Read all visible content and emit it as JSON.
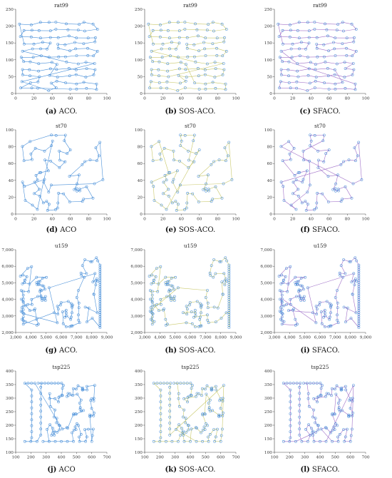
{
  "chart_data": [
    {
      "type": "scatter",
      "title": "rat99",
      "panel_letter": "(a)",
      "caption": "ACO.",
      "xlim": [
        0,
        100
      ],
      "ylim": [
        0,
        250
      ],
      "xticks": [
        0,
        20,
        40,
        60,
        80,
        100
      ],
      "yticks": [
        0,
        50,
        100,
        150,
        200,
        250
      ],
      "grid": "rat",
      "variant": 0
    },
    {
      "type": "scatter",
      "title": "rat99",
      "panel_letter": "(b)",
      "caption": "SOS-ACO.",
      "xlim": [
        0,
        100
      ],
      "ylim": [
        0,
        250
      ],
      "xticks": [
        0,
        20,
        40,
        60,
        80,
        100
      ],
      "yticks": [
        0,
        50,
        100,
        150,
        200,
        250
      ],
      "grid": "rat",
      "variant": 1
    },
    {
      "type": "scatter",
      "title": "rat99",
      "panel_letter": "(c)",
      "caption": "SFACO.",
      "xlim": [
        0,
        100
      ],
      "ylim": [
        0,
        250
      ],
      "xticks": [
        0,
        20,
        40,
        60,
        80,
        100
      ],
      "yticks": [
        0,
        50,
        100,
        150,
        200,
        250
      ],
      "grid": "rat",
      "variant": 2
    },
    {
      "type": "scatter",
      "title": "st70",
      "panel_letter": "(d)",
      "caption": "ACO",
      "xlim": [
        0,
        100
      ],
      "ylim": [
        0,
        100
      ],
      "xticks": [
        0,
        20,
        40,
        60,
        80,
        100
      ],
      "yticks": [
        0,
        20,
        40,
        60,
        80,
        100
      ],
      "grid": "st",
      "variant": 0
    },
    {
      "type": "scatter",
      "title": "st70",
      "panel_letter": "(e)",
      "caption": "SOS-ACO.",
      "xlim": [
        0,
        100
      ],
      "ylim": [
        0,
        100
      ],
      "xticks": [
        0,
        20,
        40,
        60,
        80,
        100
      ],
      "yticks": [
        0,
        20,
        40,
        60,
        80,
        100
      ],
      "grid": "st",
      "variant": 1
    },
    {
      "type": "scatter",
      "title": "st70",
      "panel_letter": "(f)",
      "caption": "SFACO.",
      "xlim": [
        0,
        100
      ],
      "ylim": [
        0,
        100
      ],
      "xticks": [
        0,
        20,
        40,
        60,
        80,
        100
      ],
      "yticks": [
        0,
        20,
        40,
        60,
        80,
        100
      ],
      "grid": "st",
      "variant": 2
    },
    {
      "type": "scatter",
      "title": "u159",
      "panel_letter": "(g)",
      "caption": "ACO.",
      "xlim": [
        3000,
        9000
      ],
      "ylim": [
        2000,
        7000
      ],
      "xticks": [
        3000,
        4000,
        5000,
        6000,
        7000,
        8000,
        9000
      ],
      "yticks": [
        2000,
        3000,
        4000,
        5000,
        6000,
        7000
      ],
      "xticklabels": [
        "3,000",
        "4,000",
        "5,000",
        "6,000",
        "7,000",
        "8,000",
        "9,000"
      ],
      "yticklabels": [
        "2,000",
        "3,000",
        "4,000",
        "5,000",
        "6,000",
        "7,000"
      ],
      "grid": "u",
      "variant": 0
    },
    {
      "type": "scatter",
      "title": "u159",
      "panel_letter": "(h)",
      "caption": "SOS-ACO.",
      "xlim": [
        3000,
        9000
      ],
      "ylim": [
        2000,
        7000
      ],
      "xticks": [
        3000,
        4000,
        5000,
        6000,
        7000,
        8000,
        9000
      ],
      "yticks": [
        2000,
        3000,
        4000,
        5000,
        6000,
        7000
      ],
      "xticklabels": [
        "3,000",
        "4,000",
        "5,000",
        "6,000",
        "7,000",
        "8,000",
        "9,000"
      ],
      "yticklabels": [
        "2,000",
        "3,000",
        "4,000",
        "5,000",
        "6,000",
        "7,000"
      ],
      "grid": "u",
      "variant": 1
    },
    {
      "type": "scatter",
      "title": "u159",
      "panel_letter": "(i)",
      "caption": "SFACO.",
      "xlim": [
        3000,
        9000
      ],
      "ylim": [
        2000,
        7000
      ],
      "xticks": [
        3000,
        4000,
        5000,
        6000,
        7000,
        8000,
        9000
      ],
      "yticks": [
        2000,
        3000,
        4000,
        5000,
        6000,
        7000
      ],
      "xticklabels": [
        "3,000",
        "4,000",
        "5,000",
        "6,000",
        "7,000",
        "8,000",
        "9,000"
      ],
      "yticklabels": [
        "2,000",
        "3,000",
        "4,000",
        "5,000",
        "6,000",
        "7,000"
      ],
      "grid": "u",
      "variant": 2
    },
    {
      "type": "scatter",
      "title": "tsp225",
      "panel_letter": "(j)",
      "caption": "ACO",
      "xlim": [
        100,
        700
      ],
      "ylim": [
        100,
        400
      ],
      "xticks": [
        100,
        200,
        300,
        400,
        500,
        600,
        700
      ],
      "yticks": [
        100,
        150,
        200,
        250,
        300,
        350,
        400
      ],
      "grid": "tsp",
      "variant": 0
    },
    {
      "type": "scatter",
      "title": "tsp225",
      "panel_letter": "(k)",
      "caption": "SOS-ACO.",
      "xlim": [
        100,
        700
      ],
      "ylim": [
        100,
        400
      ],
      "xticks": [
        100,
        200,
        300,
        400,
        500,
        600,
        700
      ],
      "yticks": [
        100,
        150,
        200,
        250,
        300,
        350,
        400
      ],
      "grid": "tsp",
      "variant": 1
    },
    {
      "type": "scatter",
      "title": "tsp225",
      "panel_letter": "(l)",
      "caption": "SFACO.",
      "xlim": [
        100,
        700
      ],
      "ylim": [
        100,
        400
      ],
      "xticks": [
        100,
        200,
        300,
        400,
        500,
        600,
        700
      ],
      "yticks": [
        100,
        150,
        200,
        250,
        300,
        350,
        400
      ],
      "grid": "tsp",
      "variant": 2
    }
  ],
  "colors": {
    "node": "#4a90d9",
    "edge_palette": [
      "#4a90d9",
      "#5fb3c9",
      "#6fc080",
      "#c9c86a",
      "#e0b060",
      "#d98aa0",
      "#a070c8"
    ]
  }
}
